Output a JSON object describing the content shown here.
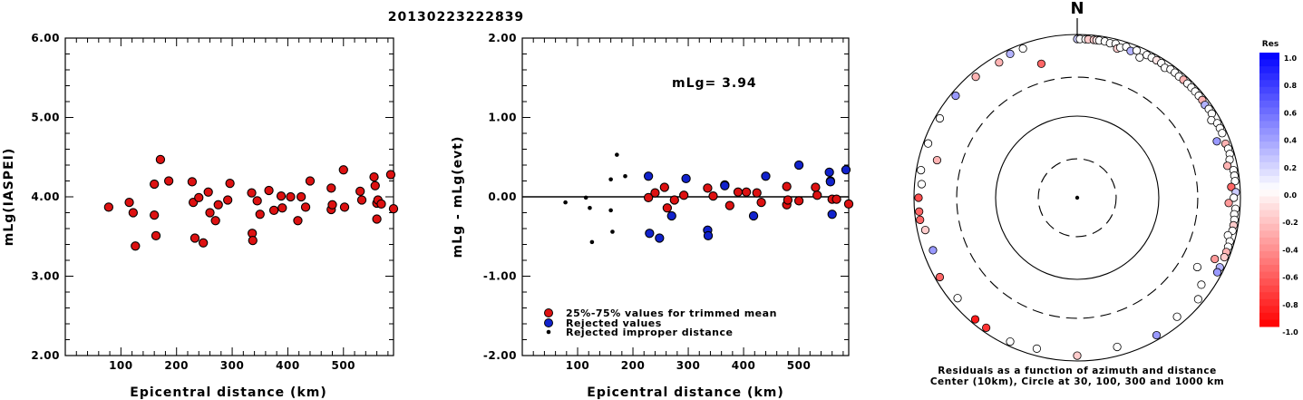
{
  "title": "20130223222839",
  "colors": {
    "trimmed": "#dd1111",
    "rejected": "#1122cc",
    "improper": "#000000"
  },
  "chart_data": [
    {
      "type": "scatter",
      "title": "",
      "xlabel": "Epicentral distance (km)",
      "ylabel": "mLg(IASPEI)",
      "xlim": [
        0,
        590
      ],
      "ylim": [
        2.0,
        6.0
      ],
      "xticks": [
        "100",
        "200",
        "300",
        "400",
        "500"
      ],
      "xtick_values": [
        100,
        200,
        300,
        400,
        500
      ],
      "yticks": [
        "2.00",
        "3.00",
        "4.00",
        "5.00",
        "6.00"
      ],
      "ytick_values": [
        2,
        3,
        4,
        5,
        6
      ],
      "series": [
        {
          "marker": "circle",
          "points": [
            [
              78,
              3.87
            ],
            [
              115,
              3.93
            ],
            [
              122,
              3.8
            ],
            [
              126,
              3.38
            ],
            [
              160,
              4.16
            ],
            [
              160,
              3.77
            ],
            [
              163,
              3.51
            ],
            [
              171,
              4.47
            ],
            [
              186,
              4.2
            ],
            [
              228,
              4.19
            ],
            [
              230,
              3.93
            ],
            [
              233,
              3.48
            ],
            [
              240,
              3.99
            ],
            [
              248,
              3.42
            ],
            [
              257,
              4.06
            ],
            [
              260,
              3.8
            ],
            [
              270,
              3.7
            ],
            [
              275,
              3.9
            ],
            [
              292,
              3.96
            ],
            [
              296,
              4.17
            ],
            [
              335,
              4.05
            ],
            [
              336,
              3.54
            ],
            [
              337,
              3.45
            ],
            [
              345,
              3.95
            ],
            [
              350,
              3.78
            ],
            [
              366,
              4.08
            ],
            [
              375,
              3.83
            ],
            [
              388,
              4.01
            ],
            [
              390,
              3.86
            ],
            [
              405,
              4.0
            ],
            [
              418,
              3.7
            ],
            [
              424,
              4.0
            ],
            [
              432,
              3.87
            ],
            [
              440,
              4.2
            ],
            [
              478,
              4.11
            ],
            [
              478,
              3.84
            ],
            [
              480,
              3.9
            ],
            [
              500,
              4.34
            ],
            [
              502,
              3.87
            ],
            [
              530,
              4.07
            ],
            [
              533,
              3.96
            ],
            [
              555,
              4.25
            ],
            [
              557,
              4.14
            ],
            [
              560,
              3.92
            ],
            [
              560,
              3.72
            ],
            [
              562,
              3.96
            ],
            [
              568,
              3.91
            ],
            [
              585,
              4.28
            ],
            [
              592,
              3.85
            ]
          ]
        }
      ]
    },
    {
      "type": "scatter",
      "title": "",
      "xlabel": "Epicentral distance (km)",
      "ylabel": "mLg - mLg(evt)",
      "annotation": "mLg= 3.94",
      "xlim": [
        0,
        590
      ],
      "ylim": [
        -2.0,
        2.0
      ],
      "zero_line": 0,
      "xticks": [
        "100",
        "200",
        "300",
        "400",
        "500"
      ],
      "xtick_values": [
        100,
        200,
        300,
        400,
        500
      ],
      "yticks": [
        "-2.00",
        "-1.00",
        "0.00",
        "1.00",
        "2.00"
      ],
      "ytick_values": [
        -2,
        -1,
        0,
        1,
        2
      ],
      "series": [
        {
          "name": "25%-75% values for trimmed mean",
          "marker": "circle",
          "color_key": "trimmed",
          "points": [
            [
              228,
              -0.01
            ],
            [
              240,
              0.05
            ],
            [
              257,
              0.12
            ],
            [
              262,
              -0.14
            ],
            [
              275,
              -0.04
            ],
            [
              292,
              0.02
            ],
            [
              335,
              0.11
            ],
            [
              345,
              0.01
            ],
            [
              366,
              0.15
            ],
            [
              375,
              -0.11
            ],
            [
              390,
              0.06
            ],
            [
              405,
              0.06
            ],
            [
              424,
              0.05
            ],
            [
              432,
              -0.07
            ],
            [
              478,
              0.13
            ],
            [
              478,
              -0.1
            ],
            [
              480,
              -0.04
            ],
            [
              500,
              -0.05
            ],
            [
              530,
              0.12
            ],
            [
              533,
              0.02
            ],
            [
              557,
              0.2
            ],
            [
              560,
              -0.03
            ],
            [
              568,
              -0.03
            ],
            [
              592,
              -0.09
            ]
          ]
        },
        {
          "name": "Rejected values",
          "marker": "circle",
          "color_key": "rejected",
          "points": [
            [
              228,
              0.26
            ],
            [
              230,
              -0.46
            ],
            [
              248,
              -0.52
            ],
            [
              270,
              -0.24
            ],
            [
              296,
              0.23
            ],
            [
              335,
              -0.42
            ],
            [
              336,
              -0.49
            ],
            [
              366,
              0.14
            ],
            [
              418,
              -0.24
            ],
            [
              440,
              0.26
            ],
            [
              500,
              0.4
            ],
            [
              555,
              0.31
            ],
            [
              557,
              0.19
            ],
            [
              560,
              -0.22
            ],
            [
              585,
              0.34
            ]
          ]
        },
        {
          "name": "Rejected improper distance",
          "marker": "dot",
          "color_key": "improper",
          "points": [
            [
              78,
              -0.07
            ],
            [
              115,
              -0.01
            ],
            [
              122,
              -0.14
            ],
            [
              126,
              -0.57
            ],
            [
              160,
              0.22
            ],
            [
              160,
              -0.17
            ],
            [
              163,
              -0.44
            ],
            [
              171,
              0.53
            ],
            [
              186,
              0.26
            ]
          ]
        }
      ]
    },
    {
      "type": "scatter",
      "subtype": "polar",
      "title": "",
      "north_label": "N",
      "caption_lines": [
        "Residuals as a function of azimuth and distance",
        "Center (10km), Circle at 30, 100, 300 and 1000 km"
      ],
      "rings_km": [
        30,
        100,
        300,
        1000
      ],
      "ring_styles": [
        "dashed",
        "solid",
        "dashed",
        "solid"
      ],
      "colorbar": {
        "title": "Res",
        "min": -1.0,
        "max": 1.0,
        "tick_labels": [
          "1.0",
          "0.8",
          "0.6",
          "0.4",
          "0.2",
          "0.0",
          "-0.2",
          "-0.4",
          "-0.6",
          "-0.8",
          "-1.0"
        ],
        "tick_values": [
          1.0,
          0.8,
          0.6,
          0.4,
          0.2,
          0.0,
          -0.2,
          -0.4,
          -0.6,
          -0.8,
          -1.0
        ],
        "positive_color": "#0000ff",
        "negative_color": "#ff0000"
      },
      "points_note": "azimuth in degrees clockwise from north, distance in km, residual in mLg units",
      "points": [
        [
          0,
          1000,
          0.2
        ],
        [
          1,
          960,
          0.0
        ],
        [
          3,
          1000,
          0.0
        ],
        [
          4,
          1000,
          -0.2
        ],
        [
          6,
          1000,
          -0.2
        ],
        [
          7,
          960,
          -0.1
        ],
        [
          8,
          1000,
          0.0
        ],
        [
          10,
          930,
          0.0
        ],
        [
          12,
          860,
          0.0
        ],
        [
          14,
          900,
          0.0
        ],
        [
          15,
          780,
          -0.2
        ],
        [
          16,
          820,
          0.0
        ],
        [
          18,
          960,
          0.0
        ],
        [
          20,
          820,
          0.3
        ],
        [
          22,
          880,
          0.0
        ],
        [
          24,
          760,
          0.0
        ],
        [
          26,
          960,
          0.0
        ],
        [
          28,
          900,
          0.0
        ],
        [
          30,
          980,
          -0.1
        ],
        [
          32,
          940,
          0.0
        ],
        [
          34,
          830,
          0.0
        ],
        [
          36,
          900,
          0.0
        ],
        [
          38,
          960,
          0.0
        ],
        [
          40,
          870,
          0.0
        ],
        [
          42,
          900,
          -0.3
        ],
        [
          44,
          960,
          0.0
        ],
        [
          46,
          880,
          0.0
        ],
        [
          48,
          930,
          0.0
        ],
        [
          50,
          980,
          0.0
        ],
        [
          52,
          900,
          -0.3
        ],
        [
          54,
          860,
          0.3
        ],
        [
          56,
          930,
          0.0
        ],
        [
          58,
          960,
          0.0
        ],
        [
          60,
          790,
          0.0
        ],
        [
          62,
          900,
          0.0
        ],
        [
          64,
          960,
          0.0
        ],
        [
          66,
          980,
          0.0
        ],
        [
          68,
          700,
          0.4
        ],
        [
          70,
          860,
          -0.3
        ],
        [
          72,
          920,
          0.0
        ],
        [
          74,
          980,
          0.0
        ],
        [
          76,
          840,
          0.0
        ],
        [
          78,
          760,
          -0.3
        ],
        [
          80,
          960,
          0.0
        ],
        [
          82,
          880,
          0.0
        ],
        [
          84,
          900,
          0.0
        ],
        [
          86,
          780,
          -0.6
        ],
        [
          88,
          960,
          0.2
        ],
        [
          90,
          830,
          0.0
        ],
        [
          92,
          720,
          -0.4
        ],
        [
          94,
          940,
          0.0
        ],
        [
          96,
          860,
          0.0
        ],
        [
          98,
          980,
          0.0
        ],
        [
          100,
          880,
          -0.2
        ],
        [
          102,
          960,
          0.0
        ],
        [
          104,
          800,
          0.0
        ],
        [
          106,
          940,
          0.0
        ],
        [
          108,
          880,
          0.0
        ],
        [
          110,
          940,
          -0.3
        ],
        [
          112,
          960,
          -0.2
        ],
        [
          114,
          700,
          -0.4
        ],
        [
          116,
          900,
          0.3
        ],
        [
          118,
          960,
          0.4
        ],
        [
          120,
          500,
          0.0
        ],
        [
          125,
          720,
          0.0
        ],
        [
          130,
          860,
          0.0
        ],
        [
          140,
          800,
          0.0
        ],
        [
          150,
          940,
          0.4
        ],
        [
          165,
          780,
          0.0
        ],
        [
          180,
          860,
          -0.2
        ],
        [
          195,
          820,
          0.0
        ],
        [
          205,
          900,
          0.0
        ],
        [
          215,
          960,
          -0.8
        ],
        [
          220,
          980,
          -0.9
        ],
        [
          230,
          820,
          0.0
        ],
        [
          240,
          940,
          -0.6
        ],
        [
          250,
          760,
          0.4
        ],
        [
          258,
          800,
          -0.2
        ],
        [
          262,
          940,
          -0.6
        ],
        [
          265,
          980,
          -0.6
        ],
        [
          270,
          980,
          -0.7
        ],
        [
          275,
          820,
          0.0
        ],
        [
          280,
          940,
          0.0
        ],
        [
          285,
          600,
          -0.3
        ],
        [
          290,
          880,
          0.0
        ],
        [
          300,
          980,
          0.0
        ],
        [
          310,
          940,
          0.4
        ],
        [
          320,
          860,
          -0.3
        ],
        [
          330,
          820,
          -0.3
        ],
        [
          335,
          940,
          0.3
        ],
        [
          340,
          880,
          0.0
        ],
        [
          345,
          500,
          -0.6
        ]
      ]
    }
  ]
}
